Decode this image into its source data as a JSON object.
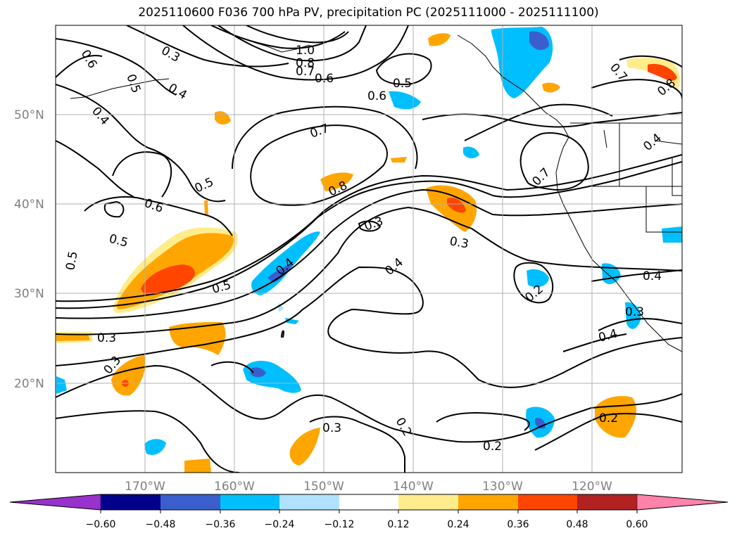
{
  "title": "2025110600 F036 700 hPa PV, precipitation PC (2025111000 - 2025111100)",
  "lat_labels": [
    "50°N",
    "40°N",
    "30°N",
    "20°N"
  ],
  "lon_labels": [
    "170°W",
    "160°W",
    "150°W",
    "140°W",
    "130°W",
    "120°W"
  ],
  "contour_labels": [
    {
      "text": "0.6",
      "id": "pv-0.6-nw"
    },
    {
      "text": "0.3",
      "id": "pv-0.3-n"
    },
    {
      "text": "0.5",
      "id": "pv-0.5-nw"
    },
    {
      "text": "0.4",
      "id": "pv-0.4-nw"
    },
    {
      "text": "0.4",
      "id": "pv-0.4-w"
    },
    {
      "text": "1.0",
      "id": "pv-1.0"
    },
    {
      "text": "0.8",
      "id": "pv-0.8-n"
    },
    {
      "text": "0.7",
      "id": "pv-0.7-n"
    },
    {
      "text": "0.6",
      "id": "pv-0.6-n"
    },
    {
      "text": "0.5",
      "id": "pv-0.5-n"
    },
    {
      "text": "0.6",
      "id": "pv-0.6-c"
    },
    {
      "text": "0.7",
      "id": "pv-0.7-c"
    },
    {
      "text": "0.8",
      "id": "pv-0.8-c"
    },
    {
      "text": "0.5",
      "id": "pv-0.5-w1"
    },
    {
      "text": "0.6",
      "id": "pv-0.6-w"
    },
    {
      "text": "0.5",
      "id": "pv-0.5-w2"
    },
    {
      "text": "0.5",
      "id": "pv-0.5-w3"
    },
    {
      "text": "0.5",
      "id": "pv-0.5-jet"
    },
    {
      "text": "0.4",
      "id": "pv-0.4-jet"
    },
    {
      "text": "0.3",
      "id": "pv-0.3-c"
    },
    {
      "text": "0.3",
      "id": "pv-0.3-e"
    },
    {
      "text": "0.4",
      "id": "pv-0.4-c"
    },
    {
      "text": "0.2",
      "id": "pv-0.2-e"
    },
    {
      "text": "0.3",
      "id": "pv-0.3-w"
    },
    {
      "text": "0.3",
      "id": "pv-0.3-sw"
    },
    {
      "text": "0.3",
      "id": "pv-0.3-s"
    },
    {
      "text": "0.2",
      "id": "pv-0.2-s1"
    },
    {
      "text": "0.2",
      "id": "pv-0.2-s2"
    },
    {
      "text": "0.2",
      "id": "pv-0.2-se"
    },
    {
      "text": "0.4",
      "id": "pv-0.4-se"
    },
    {
      "text": "0.7",
      "id": "pv-0.7-ne"
    },
    {
      "text": "0.8",
      "id": "pv-0.8-ne"
    },
    {
      "text": "0.4",
      "id": "pv-0.4-ne"
    },
    {
      "text": "0.7",
      "id": "pv-0.7-e"
    },
    {
      "text": "0.4",
      "id": "pv-0.4-coast"
    },
    {
      "text": "0.3",
      "id": "pv-0.3-coast"
    }
  ],
  "colorbar": {
    "ticks": [
      "−0.60",
      "−0.48",
      "−0.36",
      "−0.24",
      "−0.12",
      "0.12",
      "0.24",
      "0.36",
      "0.48",
      "0.60"
    ],
    "colors": [
      "#9932cc",
      "#00008b",
      "#3a5fcd",
      "#00bfff",
      "#b0e2ff",
      "#ffffff",
      "#ffec8b",
      "#ffa500",
      "#ff4500",
      "#b22222",
      "#ff82ab"
    ]
  }
}
